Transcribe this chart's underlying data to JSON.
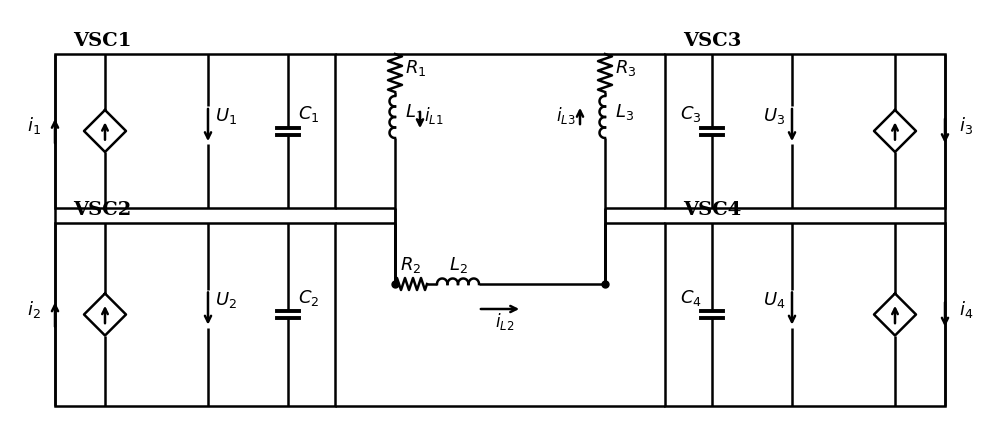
{
  "bg_color": "#ffffff",
  "line_color": "#000000",
  "lw": 1.8,
  "fs": 13,
  "vsc1_label": "VSC1",
  "vsc2_label": "VSC2",
  "vsc3_label": "VSC3",
  "vsc4_label": "VSC4",
  "components": {
    "U1": "$U_1$",
    "U2": "$U_2$",
    "U3": "$U_3$",
    "U4": "$U_4$",
    "C1": "$C_1$",
    "C2": "$C_2$",
    "C3": "$C_3$",
    "C4": "$C_4$",
    "R1": "$R_1$",
    "R2": "$R_2$",
    "R3": "$R_3$",
    "L1": "$L_1$",
    "L2": "$L_2$",
    "L3": "$L_3$",
    "i1": "$i_1$",
    "i2": "$i_2$",
    "i3": "$i_3$",
    "i4": "$i_4$",
    "iL1": "$i_{L1}$",
    "iL2": "$i_{L2}$",
    "iL3": "$i_{L3}$"
  }
}
